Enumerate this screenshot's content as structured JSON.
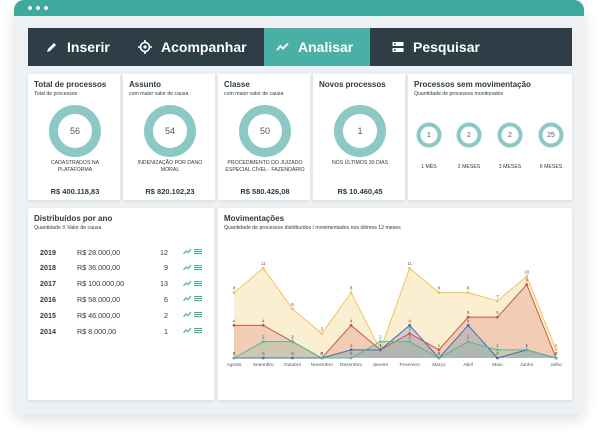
{
  "nav": {
    "items": [
      {
        "label": "Inserir",
        "icon": "pencil-icon"
      },
      {
        "label": "Acompanhar",
        "icon": "target-icon"
      },
      {
        "label": "Analisar",
        "icon": "trend-chart-icon"
      },
      {
        "label": "Pesquisar",
        "icon": "search-list-icon"
      }
    ],
    "active": "Analisar"
  },
  "summary_cards": [
    {
      "title": "Total de processos",
      "subtitle": "Total de processos",
      "value": "56",
      "desc": "CADASTRADOS NA PLATAFORMA",
      "money": "R$ 400.118,83",
      "fill": 1.0
    },
    {
      "title": "Assunto",
      "subtitle": "com maior valor de causa",
      "value": "54",
      "desc": "INDENIZAÇÃO POR DANO MORAL",
      "money": "R$ 820.102,23",
      "fill": 1.0
    },
    {
      "title": "Classe",
      "subtitle": "com maior valor de causa",
      "value": "50",
      "desc": "PROCEDIMENTO DO JUIZADO ESPECIAL CÍVEL - FAZENDÁRIO",
      "money": "R$ 580.426,08",
      "fill": 1.0
    },
    {
      "title": "Novos processos",
      "subtitle": "",
      "value": "1",
      "desc": "NOS ÚLTIMOS 30 DIAS",
      "money": "R$ 10.460,45",
      "fill": 1.0
    }
  ],
  "stale": {
    "title": "Processos sem movimentação",
    "subtitle": "Quantidade de processos monitorados",
    "items": [
      {
        "value": "1",
        "label": "1 MÊS"
      },
      {
        "value": "2",
        "label": "2 MESES"
      },
      {
        "value": "2",
        "label": "3 MESES"
      },
      {
        "value": "25",
        "label": "6 MESES"
      }
    ]
  },
  "distribuidos": {
    "title": "Distribuídos por ano",
    "subtitle": "Quantidade X Valor de causa",
    "rows": [
      {
        "year": "2019",
        "value": "R$ 28.000,00",
        "count": "12"
      },
      {
        "year": "2018",
        "value": "R$ 36.000,00",
        "count": "9"
      },
      {
        "year": "2017",
        "value": "R$ 100.000,00",
        "count": "13"
      },
      {
        "year": "2016",
        "value": "R$ 58.000,00",
        "count": "6"
      },
      {
        "year": "2015",
        "value": "R$ 46.000,00",
        "count": "2"
      },
      {
        "year": "2014",
        "value": "R$ 8.000,00",
        "count": "1"
      }
    ],
    "row_icons": [
      "trend-icon",
      "list-icon"
    ]
  },
  "movimentacoes": {
    "title": "Movimentações",
    "subtitle": "Quantidade de processos distribuídos / movimentados nos últimos 12 meses"
  },
  "colors": {
    "teal": "#4ab0a5",
    "donut": "#8cc9c4",
    "nav_bg": "#2f3e46",
    "series_yellow": "#f0c45e",
    "series_red": "#c9574a",
    "series_blue": "#3f6fb5",
    "series_green": "#56b79a"
  },
  "chart_data": {
    "type": "area",
    "categories": [
      "Agosto",
      "Setembro",
      "Outubro",
      "Novembro",
      "Dezembro",
      "Janeiro",
      "Fevereiro",
      "Março",
      "Abril",
      "Maio",
      "Junho",
      "Julho"
    ],
    "series": [
      {
        "color": "#f0c45e",
        "values": [
          8,
          11,
          6,
          3,
          8,
          1,
          11,
          8,
          8,
          7,
          10,
          1
        ]
      },
      {
        "color": "#c9574a",
        "values": [
          4,
          4,
          2,
          0,
          4,
          1,
          3,
          1,
          5,
          5,
          9,
          0
        ]
      },
      {
        "color": "#3f6fb5",
        "values": [
          0,
          0,
          0,
          0,
          1,
          1,
          4,
          0,
          4,
          0,
          1,
          0
        ]
      },
      {
        "color": "#56b79a",
        "values": [
          0,
          2,
          2,
          0,
          0,
          2,
          2,
          0,
          2,
          1,
          1,
          0
        ]
      }
    ],
    "ylim": [
      0,
      12
    ],
    "legend": "none",
    "grid": false
  }
}
